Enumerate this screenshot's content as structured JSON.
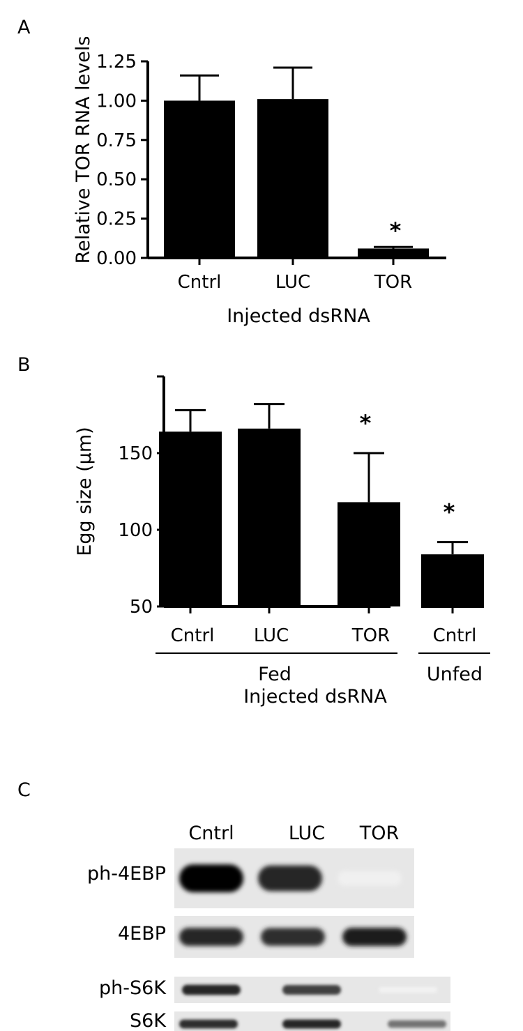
{
  "chart_data": [
    {
      "panel": "A",
      "type": "bar",
      "categories": [
        "Cntrl",
        "LUC",
        "TOR"
      ],
      "values": [
        1.0,
        1.01,
        0.06
      ],
      "errors": [
        0.16,
        0.2,
        0.01
      ],
      "significance": [
        "",
        "",
        "*"
      ],
      "ylabel": "Relative TOR RNA levels",
      "xlabel": "Injected dsRNA",
      "ylim": [
        0,
        1.25
      ],
      "yticks": [
        "0.00",
        "0.25",
        "0.50",
        "0.75",
        "1.00",
        "1.25"
      ],
      "grid": false
    },
    {
      "panel": "B",
      "type": "bar",
      "categories": [
        "Cntrl",
        "LUC",
        "TOR",
        "Cntrl"
      ],
      "values": [
        164,
        166,
        118,
        84
      ],
      "errors": [
        14,
        16,
        32,
        8
      ],
      "significance": [
        "",
        "",
        "*",
        "*"
      ],
      "groups": [
        {
          "label": "Fed",
          "members": [
            0,
            1,
            2
          ]
        },
        {
          "label": "Unfed",
          "members": [
            3
          ]
        }
      ],
      "ylabel": "Egg size (µm)",
      "xlabel": "Injected dsRNA",
      "ylim": [
        50,
        200
      ],
      "yticks": [
        "50",
        "100",
        "150"
      ],
      "grid": false
    },
    {
      "panel": "C",
      "type": "table",
      "columns": [
        "Cntrl",
        "LUC",
        "TOR"
      ],
      "rows": [
        {
          "label": "ph-4EBP",
          "intensities": [
            1.0,
            0.85,
            0.06
          ]
        },
        {
          "label": "4EBP",
          "intensities": [
            0.85,
            0.82,
            0.88
          ]
        },
        {
          "label": "ph-S6K",
          "intensities": [
            0.85,
            0.75,
            0.05
          ]
        },
        {
          "label": "S6K",
          "intensities": [
            0.82,
            0.85,
            0.55
          ]
        }
      ]
    }
  ]
}
